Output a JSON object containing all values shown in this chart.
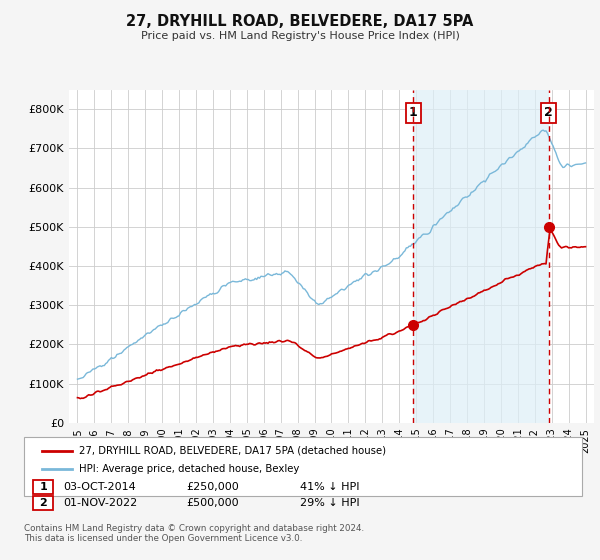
{
  "title": "27, DRYHILL ROAD, BELVEDERE, DA17 5PA",
  "subtitle": "Price paid vs. HM Land Registry's House Price Index (HPI)",
  "ylim": [
    0,
    850000
  ],
  "yticks": [
    0,
    100000,
    200000,
    300000,
    400000,
    500000,
    600000,
    700000,
    800000
  ],
  "hpi_color": "#7ab8d9",
  "hpi_fill_color": "#ddeef7",
  "price_color": "#cc0000",
  "vline_color": "#cc0000",
  "sale1_x": 2014.83,
  "sale1_y": 250000,
  "sale2_x": 2022.83,
  "sale2_y": 500000,
  "legend_label_price": "27, DRYHILL ROAD, BELVEDERE, DA17 5PA (detached house)",
  "legend_label_hpi": "HPI: Average price, detached house, Bexley",
  "table_rows": [
    {
      "num": "1",
      "date": "03-OCT-2014",
      "price": "£250,000",
      "pct": "41% ↓ HPI"
    },
    {
      "num": "2",
      "date": "01-NOV-2022",
      "price": "£500,000",
      "pct": "29% ↓ HPI"
    }
  ],
  "footnote": "Contains HM Land Registry data © Crown copyright and database right 2024.\nThis data is licensed under the Open Government Licence v3.0.",
  "background_color": "#f5f5f5",
  "plot_bg_color": "#ffffff",
  "grid_color": "#cccccc",
  "xlim_left": 1994.5,
  "xlim_right": 2025.5
}
